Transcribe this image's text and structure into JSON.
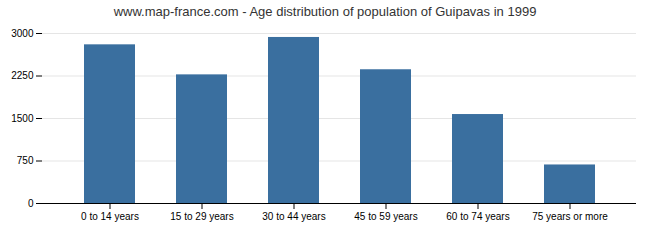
{
  "chart_data": {
    "type": "bar",
    "title": "www.map-france.com - Age distribution of population of Guipavas in 1999",
    "categories": [
      "0 to 14 years",
      "15 to 29 years",
      "30 to 44 years",
      "45 to 59 years",
      "60 to 74 years",
      "75 years or more"
    ],
    "values": [
      2800,
      2270,
      2930,
      2360,
      1570,
      680
    ],
    "color": "#3a6f9f",
    "ylim": [
      0,
      3000
    ],
    "yticks": [
      0,
      750,
      1500,
      2250,
      3000
    ],
    "grid": true
  }
}
